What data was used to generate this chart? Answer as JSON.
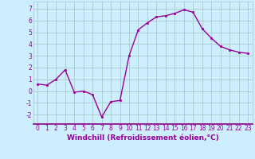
{
  "x": [
    0,
    1,
    2,
    3,
    4,
    5,
    6,
    7,
    8,
    9,
    10,
    11,
    12,
    13,
    14,
    15,
    16,
    17,
    18,
    19,
    20,
    21,
    22,
    23
  ],
  "y": [
    0.6,
    0.5,
    1.0,
    1.8,
    -0.1,
    0.0,
    -0.3,
    -2.2,
    -0.9,
    -0.8,
    3.0,
    5.2,
    5.8,
    6.3,
    6.4,
    6.6,
    6.9,
    6.7,
    5.3,
    4.5,
    3.8,
    3.5,
    3.3,
    3.2
  ],
  "line_color": "#990099",
  "marker": "s",
  "marker_size": 2.0,
  "linewidth": 1.0,
  "background_color": "#cceeff",
  "grid_color": "#aacccc",
  "xlabel": "Windchill (Refroidissement éolien,°C)",
  "xlabel_color": "#990099",
  "xlabel_fontsize": 6.5,
  "ylabel_ticks": [
    -2,
    -1,
    0,
    1,
    2,
    3,
    4,
    5,
    6,
    7
  ],
  "xlim": [
    -0.5,
    23.5
  ],
  "ylim": [
    -2.8,
    7.6
  ],
  "tick_color": "#990099",
  "tick_fontsize": 5.5
}
